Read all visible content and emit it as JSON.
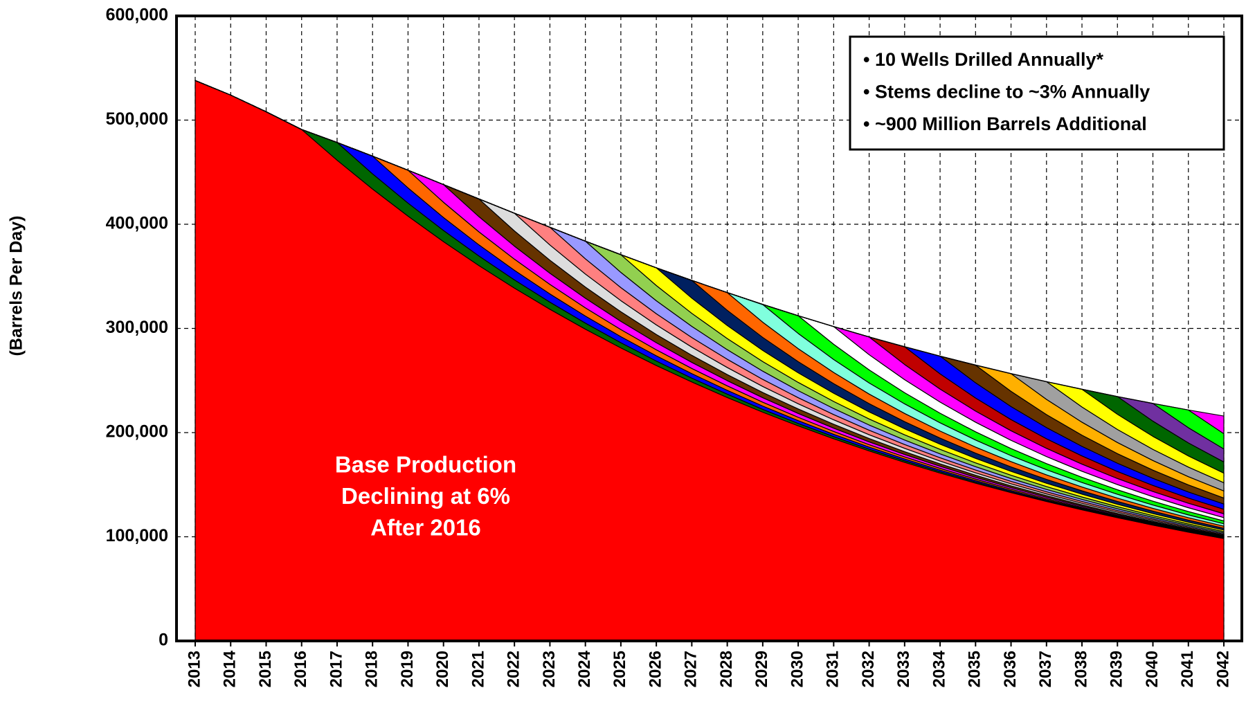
{
  "chart_data": {
    "type": "area",
    "stacked": true,
    "y_label": "(Barrels Per Day)",
    "annotations": [
      "• 10 Wells Drilled Annually*",
      "• Stems decline to ~3% Annually",
      "• ~900 Million Barrels Additional"
    ],
    "base_label": [
      "Base Production",
      "Declining at 6%",
      "After 2016"
    ],
    "categories": [
      "2013",
      "2014",
      "2015",
      "2016",
      "2017",
      "2018",
      "2019",
      "2020",
      "2021",
      "2022",
      "2023",
      "2024",
      "2025",
      "2026",
      "2027",
      "2028",
      "2029",
      "2030",
      "2031",
      "2032",
      "2033",
      "2034",
      "2035",
      "2036",
      "2037",
      "2038",
      "2039",
      "2040",
      "2041",
      "2042"
    ],
    "ylim": [
      0,
      600000
    ],
    "yticks": [
      0,
      {
        "value": 100000,
        "label": "100,000"
      },
      {
        "value": 200000,
        "label": "200,000"
      },
      {
        "value": 300000,
        "label": "300,000"
      },
      {
        "value": 400000,
        "label": "400,000"
      },
      {
        "value": 500000,
        "label": "500,000"
      },
      {
        "value": 600000,
        "label": "600,000"
      }
    ],
    "grid": true,
    "series": [
      {
        "color": "#ff0000",
        "values": [
          538000,
          524000,
          508000,
          491000,
          461500,
          433800,
          407800,
          383300,
          360300,
          338700,
          318400,
          299300,
          281300,
          264400,
          248600,
          233700,
          219600,
          206500,
          194100,
          182400,
          171500,
          161200,
          151500,
          142400,
          133900,
          125900,
          118300,
          111200,
          104500,
          98300
        ]
      },
      {
        "color": "#006600",
        "values": [
          0,
          0,
          0,
          0,
          17000,
          14600,
          12500,
          10700,
          9200,
          7900,
          6800,
          5800,
          5000,
          4300,
          3700,
          3200,
          2700,
          2300,
          2000,
          1700,
          1500,
          1300,
          1100,
          900,
          800,
          700,
          600,
          500,
          400,
          400
        ]
      },
      {
        "color": "#0000ff",
        "values": [
          0,
          0,
          0,
          0,
          0,
          17000,
          14600,
          12500,
          10700,
          9200,
          7900,
          6800,
          5800,
          5000,
          4300,
          3700,
          3200,
          2700,
          2300,
          2000,
          1700,
          1500,
          1300,
          1100,
          900,
          800,
          700,
          600,
          500,
          400
        ]
      },
      {
        "color": "#ff6600",
        "values": [
          0,
          0,
          0,
          0,
          0,
          0,
          17000,
          14600,
          12500,
          10700,
          9200,
          7900,
          6800,
          5800,
          5000,
          4300,
          3700,
          3200,
          2700,
          2300,
          2000,
          1700,
          1500,
          1300,
          1100,
          900,
          800,
          700,
          600,
          500
        ]
      },
      {
        "color": "#ff00ff",
        "values": [
          0,
          0,
          0,
          0,
          0,
          0,
          0,
          17000,
          14600,
          12500,
          10700,
          9200,
          7900,
          6800,
          5800,
          5000,
          4300,
          3700,
          3200,
          2700,
          2300,
          2000,
          1700,
          1500,
          1300,
          1100,
          900,
          800,
          700,
          600
        ]
      },
      {
        "color": "#663300",
        "values": [
          0,
          0,
          0,
          0,
          0,
          0,
          0,
          0,
          17000,
          14600,
          12500,
          10700,
          9200,
          7900,
          6800,
          5800,
          5000,
          4300,
          3700,
          3200,
          2700,
          2300,
          2000,
          1700,
          1500,
          1300,
          1100,
          900,
          800,
          700
        ]
      },
      {
        "color": "#dddddd",
        "values": [
          0,
          0,
          0,
          0,
          0,
          0,
          0,
          0,
          0,
          17000,
          14600,
          12500,
          10700,
          9200,
          7900,
          6800,
          5800,
          5000,
          4300,
          3700,
          3200,
          2700,
          2300,
          2000,
          1700,
          1500,
          1300,
          1100,
          900,
          800
        ]
      },
      {
        "color": "#ff8080",
        "values": [
          0,
          0,
          0,
          0,
          0,
          0,
          0,
          0,
          0,
          0,
          17000,
          14600,
          12500,
          10700,
          9200,
          7900,
          6800,
          5800,
          5000,
          4300,
          3700,
          3200,
          2700,
          2300,
          2000,
          1700,
          1500,
          1300,
          1100,
          900
        ]
      },
      {
        "color": "#9999ff",
        "values": [
          0,
          0,
          0,
          0,
          0,
          0,
          0,
          0,
          0,
          0,
          0,
          17000,
          14600,
          12500,
          10700,
          9200,
          7900,
          6800,
          5800,
          5000,
          4300,
          3700,
          3200,
          2700,
          2300,
          2000,
          1700,
          1500,
          1300,
          1100
        ]
      },
      {
        "color": "#92d050",
        "values": [
          0,
          0,
          0,
          0,
          0,
          0,
          0,
          0,
          0,
          0,
          0,
          0,
          17000,
          14600,
          12500,
          10700,
          9200,
          7900,
          6800,
          5800,
          5000,
          4300,
          3700,
          3200,
          2700,
          2300,
          2000,
          1700,
          1500,
          1300
        ]
      },
      {
        "color": "#ffff00",
        "values": [
          0,
          0,
          0,
          0,
          0,
          0,
          0,
          0,
          0,
          0,
          0,
          0,
          0,
          17000,
          14600,
          12500,
          10700,
          9200,
          7900,
          6800,
          5800,
          5000,
          4300,
          3700,
          3200,
          2700,
          2300,
          2000,
          1700,
          1500
        ]
      },
      {
        "color": "#002060",
        "values": [
          0,
          0,
          0,
          0,
          0,
          0,
          0,
          0,
          0,
          0,
          0,
          0,
          0,
          0,
          17000,
          14600,
          12500,
          10700,
          9200,
          7900,
          6800,
          5800,
          5000,
          4300,
          3700,
          3200,
          2700,
          2300,
          2000,
          1700
        ]
      },
      {
        "color": "#ff6600",
        "values": [
          0,
          0,
          0,
          0,
          0,
          0,
          0,
          0,
          0,
          0,
          0,
          0,
          0,
          0,
          0,
          17000,
          14600,
          12500,
          10700,
          9200,
          7900,
          6800,
          5800,
          5000,
          4300,
          3700,
          3200,
          2700,
          2300,
          2000
        ]
      },
      {
        "color": "#80ffdd",
        "values": [
          0,
          0,
          0,
          0,
          0,
          0,
          0,
          0,
          0,
          0,
          0,
          0,
          0,
          0,
          0,
          0,
          17000,
          14600,
          12500,
          10700,
          9200,
          7900,
          6800,
          5800,
          5000,
          4300,
          3700,
          3200,
          2700,
          2300
        ]
      },
      {
        "color": "#00ff00",
        "values": [
          0,
          0,
          0,
          0,
          0,
          0,
          0,
          0,
          0,
          0,
          0,
          0,
          0,
          0,
          0,
          0,
          0,
          17000,
          14600,
          12500,
          10700,
          9200,
          7900,
          6800,
          5800,
          5000,
          4300,
          3700,
          3200,
          2700
        ]
      },
      {
        "color": "#ffffff",
        "values": [
          0,
          0,
          0,
          0,
          0,
          0,
          0,
          0,
          0,
          0,
          0,
          0,
          0,
          0,
          0,
          0,
          0,
          0,
          17000,
          14600,
          12500,
          10700,
          9200,
          7900,
          6800,
          5800,
          5000,
          4300,
          3700,
          3200
        ]
      },
      {
        "color": "#ff00ff",
        "values": [
          0,
          0,
          0,
          0,
          0,
          0,
          0,
          0,
          0,
          0,
          0,
          0,
          0,
          0,
          0,
          0,
          0,
          0,
          0,
          17000,
          14600,
          12500,
          10700,
          9200,
          7900,
          6800,
          5800,
          5000,
          4300,
          3700
        ]
      },
      {
        "color": "#c00000",
        "values": [
          0,
          0,
          0,
          0,
          0,
          0,
          0,
          0,
          0,
          0,
          0,
          0,
          0,
          0,
          0,
          0,
          0,
          0,
          0,
          0,
          17000,
          14600,
          12500,
          10700,
          9200,
          7900,
          6800,
          5800,
          5000,
          4300
        ]
      },
      {
        "color": "#0000ff",
        "values": [
          0,
          0,
          0,
          0,
          0,
          0,
          0,
          0,
          0,
          0,
          0,
          0,
          0,
          0,
          0,
          0,
          0,
          0,
          0,
          0,
          0,
          17000,
          14600,
          12500,
          10700,
          9200,
          7900,
          6800,
          5800,
          5000
        ]
      },
      {
        "color": "#663300",
        "values": [
          0,
          0,
          0,
          0,
          0,
          0,
          0,
          0,
          0,
          0,
          0,
          0,
          0,
          0,
          0,
          0,
          0,
          0,
          0,
          0,
          0,
          0,
          17000,
          14600,
          12500,
          10700,
          9200,
          7900,
          6800,
          5800
        ]
      },
      {
        "color": "#ffb000",
        "values": [
          0,
          0,
          0,
          0,
          0,
          0,
          0,
          0,
          0,
          0,
          0,
          0,
          0,
          0,
          0,
          0,
          0,
          0,
          0,
          0,
          0,
          0,
          0,
          17000,
          14600,
          12500,
          10700,
          9200,
          7900,
          6800
        ]
      },
      {
        "color": "#a0a0a0",
        "values": [
          0,
          0,
          0,
          0,
          0,
          0,
          0,
          0,
          0,
          0,
          0,
          0,
          0,
          0,
          0,
          0,
          0,
          0,
          0,
          0,
          0,
          0,
          0,
          0,
          17000,
          14600,
          12500,
          10700,
          9200,
          7900
        ]
      },
      {
        "color": "#ffff00",
        "values": [
          0,
          0,
          0,
          0,
          0,
          0,
          0,
          0,
          0,
          0,
          0,
          0,
          0,
          0,
          0,
          0,
          0,
          0,
          0,
          0,
          0,
          0,
          0,
          0,
          0,
          17000,
          14600,
          12500,
          10700,
          9200
        ]
      },
      {
        "color": "#006600",
        "values": [
          0,
          0,
          0,
          0,
          0,
          0,
          0,
          0,
          0,
          0,
          0,
          0,
          0,
          0,
          0,
          0,
          0,
          0,
          0,
          0,
          0,
          0,
          0,
          0,
          0,
          0,
          17000,
          14600,
          12500,
          10700
        ]
      },
      {
        "color": "#7030a0",
        "values": [
          0,
          0,
          0,
          0,
          0,
          0,
          0,
          0,
          0,
          0,
          0,
          0,
          0,
          0,
          0,
          0,
          0,
          0,
          0,
          0,
          0,
          0,
          0,
          0,
          0,
          0,
          0,
          17000,
          14600,
          12500
        ]
      },
      {
        "color": "#00ff00",
        "values": [
          0,
          0,
          0,
          0,
          0,
          0,
          0,
          0,
          0,
          0,
          0,
          0,
          0,
          0,
          0,
          0,
          0,
          0,
          0,
          0,
          0,
          0,
          0,
          0,
          0,
          0,
          0,
          0,
          17000,
          14600
        ]
      },
      {
        "color": "#ff00ff",
        "values": [
          0,
          0,
          0,
          0,
          0,
          0,
          0,
          0,
          0,
          0,
          0,
          0,
          0,
          0,
          0,
          0,
          0,
          0,
          0,
          0,
          0,
          0,
          0,
          0,
          0,
          0,
          0,
          0,
          0,
          17000
        ]
      }
    ]
  }
}
